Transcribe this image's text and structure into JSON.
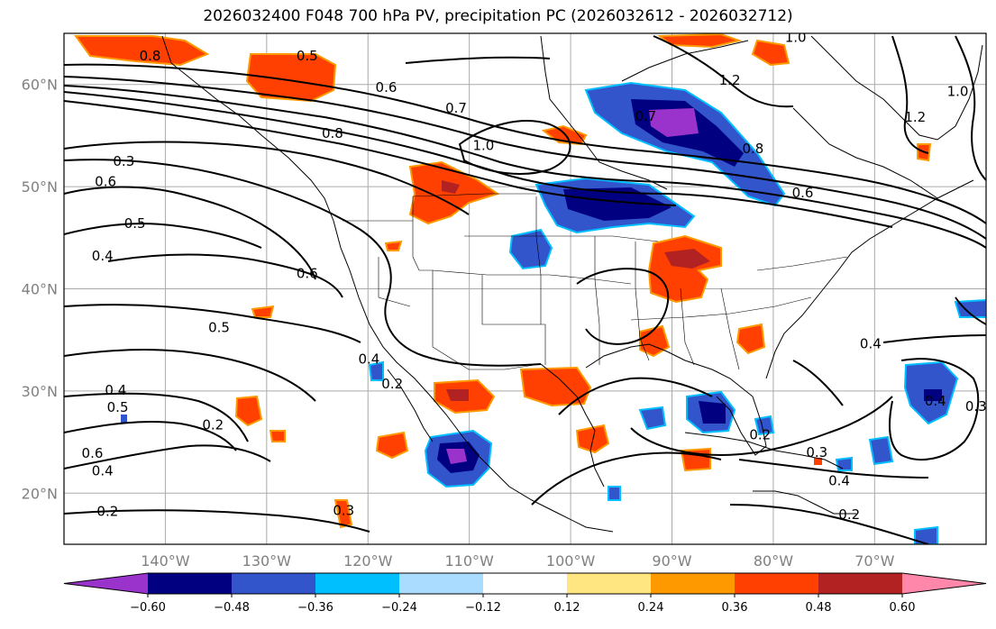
{
  "title": "2026032400 F048 700 hPa PV, precipitation PC (2026032612 - 2026032712)",
  "lat_labels": [
    {
      "text": "60°N",
      "lat": 60
    },
    {
      "text": "50°N",
      "lat": 50
    },
    {
      "text": "40°N",
      "lat": 40
    },
    {
      "text": "30°N",
      "lat": 30
    },
    {
      "text": "20°N",
      "lat": 20
    }
  ],
  "lon_labels": [
    {
      "text": "140°W",
      "lon": -140
    },
    {
      "text": "130°W",
      "lon": -130
    },
    {
      "text": "120°W",
      "lon": -120
    },
    {
      "text": "110°W",
      "lon": -110
    },
    {
      "text": "100°W",
      "lon": -100
    },
    {
      "text": "90°W",
      "lon": -90
    },
    {
      "text": "80°W",
      "lon": -80
    },
    {
      "text": "70°W",
      "lon": -70
    }
  ],
  "map_extent": {
    "lon_min": -150,
    "lon_max": -59,
    "lat_min": 15,
    "lat_max": 65
  },
  "pv_contour_labels": [
    {
      "text": "0.8",
      "lon": -141.5,
      "lat": 62.8
    },
    {
      "text": "0.5",
      "lon": -126,
      "lat": 62.8
    },
    {
      "text": "0.6",
      "lon": -118.2,
      "lat": 59.7
    },
    {
      "text": "0.7",
      "lon": -111.3,
      "lat": 57.7
    },
    {
      "text": "0.8",
      "lon": -123.5,
      "lat": 55.2
    },
    {
      "text": "1.0",
      "lon": -108.6,
      "lat": 54.0
    },
    {
      "text": "0.3",
      "lon": -144.1,
      "lat": 52.5
    },
    {
      "text": "0.6",
      "lon": -145.9,
      "lat": 50.5
    },
    {
      "text": "0.5",
      "lon": -143.0,
      "lat": 46.4
    },
    {
      "text": "0.4",
      "lon": -146.2,
      "lat": 43.2
    },
    {
      "text": "0.6",
      "lon": -126.0,
      "lat": 41.5
    },
    {
      "text": "0.5",
      "lon": -134.7,
      "lat": 36.2
    },
    {
      "text": "0.4",
      "lon": -119.9,
      "lat": 33.1
    },
    {
      "text": "0.2",
      "lon": -117.6,
      "lat": 30.7
    },
    {
      "text": "0.4",
      "lon": -144.9,
      "lat": 30.1
    },
    {
      "text": "0.5",
      "lon": -144.7,
      "lat": 28.4
    },
    {
      "text": "0.2",
      "lon": -135.3,
      "lat": 26.7
    },
    {
      "text": "0.6",
      "lon": -147.2,
      "lat": 23.9
    },
    {
      "text": "0.4",
      "lon": -146.2,
      "lat": 22.2
    },
    {
      "text": "0.3",
      "lon": -122.4,
      "lat": 18.3
    },
    {
      "text": "0.2",
      "lon": -145.7,
      "lat": 18.2
    },
    {
      "text": "0.7",
      "lon": -92.6,
      "lat": 56.9
    },
    {
      "text": "1.2",
      "lon": -84.3,
      "lat": 60.4
    },
    {
      "text": "1.0",
      "lon": -77.8,
      "lat": 64.6
    },
    {
      "text": "1.2",
      "lon": -66.0,
      "lat": 56.8
    },
    {
      "text": "1.0",
      "lon": -61.8,
      "lat": 59.3
    },
    {
      "text": "0.8",
      "lon": -82.0,
      "lat": 53.7
    },
    {
      "text": "0.6",
      "lon": -77.1,
      "lat": 49.4
    },
    {
      "text": "0.4",
      "lon": -70.4,
      "lat": 34.6
    },
    {
      "text": "0.3",
      "lon": -60.0,
      "lat": 28.5
    },
    {
      "text": "0.4",
      "lon": -64.0,
      "lat": 29.0
    },
    {
      "text": "0.2",
      "lon": -81.3,
      "lat": 25.7
    },
    {
      "text": "0.3",
      "lon": -75.7,
      "lat": 24.0
    },
    {
      "text": "0.4",
      "lon": -73.5,
      "lat": 21.2
    },
    {
      "text": "0.2",
      "lon": -72.5,
      "lat": 17.9
    }
  ],
  "colorbar": {
    "tick_labels": [
      "−0.60",
      "−0.48",
      "−0.36",
      "−0.24",
      "−0.12",
      "0.12",
      "0.24",
      "0.36",
      "0.48",
      "0.60"
    ],
    "colors": [
      "#9933cc",
      "#000080",
      "#3355cc",
      "#00bfff",
      "#aadcff",
      "#ffffff",
      "#ffe680",
      "#ff9900",
      "#ff4000",
      "#b22222",
      "#ff88aa"
    ]
  },
  "palette": {
    "neg_strong": "#9933cc",
    "neg_dark": "#000080",
    "neg_mid": "#3355cc",
    "neg_light": "#00bfff",
    "neg_pale": "#aadcff",
    "pos_pale": "#ffe680",
    "pos_mid": "#ff9900",
    "pos_strong": "#ff4000",
    "pos_dark": "#b22222"
  }
}
